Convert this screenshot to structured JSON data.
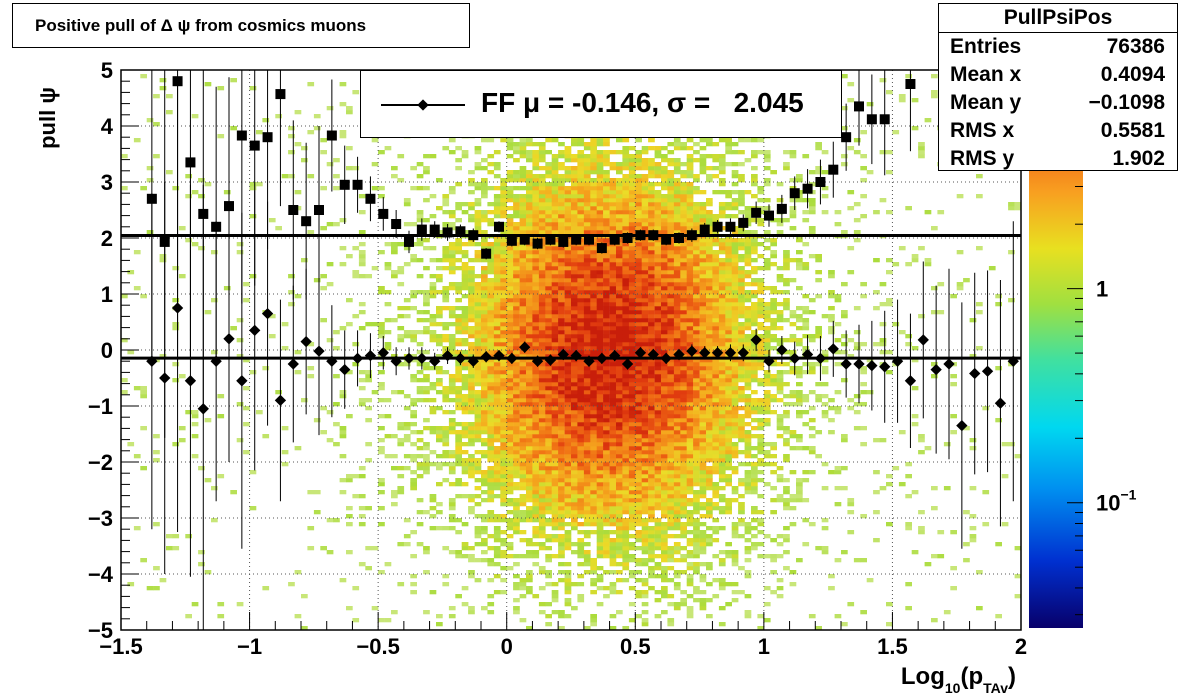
{
  "chart_data": {
    "type": "scatter",
    "title": "Positive pull of Δ ψ from cosmics muons",
    "xlabel": "Log10(pTAv)",
    "xlabel_parts": {
      "main": "Log",
      "sub1": "10",
      "paren_open": "(p",
      "sub2": "TAv",
      "paren_close": ")"
    },
    "ylabel": "pull ψ",
    "xlim": [
      -1.5,
      2.0
    ],
    "ylim": [
      -5,
      5
    ],
    "x_ticks": [
      -1.5,
      -1,
      -0.5,
      0,
      0.5,
      1,
      1.5,
      2
    ],
    "x_tick_labels": [
      "−1.5",
      "−1",
      "−0.5",
      "0",
      "0.5",
      "1",
      "1.5",
      "2"
    ],
    "y_ticks": [
      -5,
      -4,
      -3,
      -2,
      -1,
      0,
      1,
      2,
      3,
      4,
      5
    ],
    "y_tick_labels": [
      "−5",
      "−4",
      "−3",
      "−2",
      "−1",
      "0",
      "1",
      "2",
      "3",
      "4",
      "5"
    ],
    "grid": true,
    "colorbar": {
      "scale": "log",
      "labels": [
        {
          "text": "1",
          "value": 1
        },
        {
          "text": "10",
          "exp": "−1",
          "value": 0.1
        }
      ]
    },
    "stats_box": {
      "name": "PullPsiPos",
      "rows": [
        {
          "label": "Entries",
          "value": "76386"
        },
        {
          "label": "Mean x",
          "value": "0.4094"
        },
        {
          "label": "Mean y",
          "value": "−0.1098"
        },
        {
          "label": "RMS x",
          "value": "0.5581"
        },
        {
          "label": "RMS y",
          "value": "1.902"
        }
      ]
    },
    "legend": {
      "text": "FF μ = -0.146, σ =   2.045"
    },
    "fit_lines": {
      "mean": -0.146,
      "sigma": 2.045
    },
    "series": [
      {
        "marker": "diamond",
        "points": [
          {
            "x": -1.38,
            "y": -0.2,
            "e": 3.0
          },
          {
            "x": -1.33,
            "y": -0.5,
            "e": 3.5
          },
          {
            "x": -1.28,
            "y": 0.75,
            "e": 4.0
          },
          {
            "x": -1.23,
            "y": -0.55,
            "e": 3.5
          },
          {
            "x": -1.18,
            "y": -1.05,
            "e": 4.0
          },
          {
            "x": -1.13,
            "y": -0.2,
            "e": 2.5
          },
          {
            "x": -1.08,
            "y": 0.2,
            "e": 2.2
          },
          {
            "x": -1.03,
            "y": -0.55,
            "e": 3.0
          },
          {
            "x": -0.98,
            "y": 0.35,
            "e": 2.5
          },
          {
            "x": -0.93,
            "y": 0.65,
            "e": 2.0
          },
          {
            "x": -0.88,
            "y": -0.9,
            "e": 1.8
          },
          {
            "x": -0.83,
            "y": -0.25,
            "e": 1.4
          },
          {
            "x": -0.78,
            "y": 0.15,
            "e": 1.3
          },
          {
            "x": -0.73,
            "y": -0.02,
            "e": 1.5
          },
          {
            "x": -0.68,
            "y": -0.2,
            "e": 1.0
          },
          {
            "x": -0.63,
            "y": -0.35,
            "e": 0.7
          },
          {
            "x": -0.58,
            "y": -0.15,
            "e": 0.5
          },
          {
            "x": -0.53,
            "y": -0.1,
            "e": 0.4
          },
          {
            "x": -0.48,
            "y": -0.05,
            "e": 0.3
          },
          {
            "x": -0.43,
            "y": -0.2,
            "e": 0.25
          },
          {
            "x": -0.38,
            "y": -0.15,
            "e": 0.2
          },
          {
            "x": -0.33,
            "y": -0.15,
            "e": 0.2
          },
          {
            "x": -0.28,
            "y": -0.2,
            "e": 0.15
          },
          {
            "x": -0.23,
            "y": -0.1,
            "e": 0.15
          },
          {
            "x": -0.18,
            "y": -0.15,
            "e": 0.12
          },
          {
            "x": -0.13,
            "y": -0.2,
            "e": 0.12
          },
          {
            "x": -0.08,
            "y": -0.12,
            "e": 0.1
          },
          {
            "x": -0.03,
            "y": -0.1,
            "e": 0.1
          },
          {
            "x": 0.02,
            "y": -0.15,
            "e": 0.1
          },
          {
            "x": 0.07,
            "y": 0.05,
            "e": 0.1
          },
          {
            "x": 0.12,
            "y": -0.2,
            "e": 0.1
          },
          {
            "x": 0.17,
            "y": -0.18,
            "e": 0.1
          },
          {
            "x": 0.22,
            "y": -0.08,
            "e": 0.1
          },
          {
            "x": 0.27,
            "y": -0.1,
            "e": 0.1
          },
          {
            "x": 0.32,
            "y": -0.2,
            "e": 0.1
          },
          {
            "x": 0.37,
            "y": -0.15,
            "e": 0.1
          },
          {
            "x": 0.42,
            "y": -0.1,
            "e": 0.1
          },
          {
            "x": 0.47,
            "y": -0.25,
            "e": 0.1
          },
          {
            "x": 0.52,
            "y": -0.05,
            "e": 0.1
          },
          {
            "x": 0.57,
            "y": -0.08,
            "e": 0.1
          },
          {
            "x": 0.62,
            "y": -0.15,
            "e": 0.1
          },
          {
            "x": 0.67,
            "y": -0.08,
            "e": 0.1
          },
          {
            "x": 0.72,
            "y": -0.02,
            "e": 0.12
          },
          {
            "x": 0.77,
            "y": -0.05,
            "e": 0.12
          },
          {
            "x": 0.82,
            "y": -0.05,
            "e": 0.12
          },
          {
            "x": 0.87,
            "y": -0.05,
            "e": 0.15
          },
          {
            "x": 0.92,
            "y": -0.05,
            "e": 0.15
          },
          {
            "x": 0.97,
            "y": 0.18,
            "e": 0.2
          },
          {
            "x": 1.02,
            "y": -0.2,
            "e": 0.2
          },
          {
            "x": 1.07,
            "y": 0.0,
            "e": 0.25
          },
          {
            "x": 1.12,
            "y": -0.15,
            "e": 0.3
          },
          {
            "x": 1.17,
            "y": -0.08,
            "e": 0.35
          },
          {
            "x": 1.22,
            "y": -0.15,
            "e": 0.4
          },
          {
            "x": 1.27,
            "y": 0.02,
            "e": 0.5
          },
          {
            "x": 1.32,
            "y": -0.25,
            "e": 0.6
          },
          {
            "x": 1.37,
            "y": -0.25,
            "e": 0.7
          },
          {
            "x": 1.42,
            "y": -0.28,
            "e": 0.8
          },
          {
            "x": 1.47,
            "y": -0.3,
            "e": 1.0
          },
          {
            "x": 1.52,
            "y": -0.2,
            "e": 1.1
          },
          {
            "x": 1.57,
            "y": -0.55,
            "e": 1.2
          },
          {
            "x": 1.62,
            "y": 0.18,
            "e": 1.4
          },
          {
            "x": 1.67,
            "y": -0.35,
            "e": 1.5
          },
          {
            "x": 1.72,
            "y": -0.25,
            "e": 1.7
          },
          {
            "x": 1.77,
            "y": -1.35,
            "e": 2.2
          },
          {
            "x": 1.82,
            "y": -0.42,
            "e": 1.8
          },
          {
            "x": 1.87,
            "y": -0.38,
            "e": 1.8
          },
          {
            "x": 1.92,
            "y": -0.95,
            "e": 2.2
          },
          {
            "x": 1.97,
            "y": -0.2,
            "e": 2.5
          }
        ]
      },
      {
        "marker": "square",
        "points": [
          {
            "x": -1.38,
            "y": 2.7,
            "e": 3.0
          },
          {
            "x": -1.33,
            "y": 1.93,
            "e": 3.5
          },
          {
            "x": -1.28,
            "y": 4.8,
            "e": 5.0
          },
          {
            "x": -1.23,
            "y": 3.35,
            "e": 3.5
          },
          {
            "x": -1.18,
            "y": 2.43,
            "e": 3.5
          },
          {
            "x": -1.13,
            "y": 2.2,
            "e": 2.5
          },
          {
            "x": -1.08,
            "y": 2.57,
            "e": 2.3
          },
          {
            "x": -1.03,
            "y": 3.83,
            "e": 3.0
          },
          {
            "x": -0.98,
            "y": 3.65,
            "e": 2.5
          },
          {
            "x": -0.93,
            "y": 3.8,
            "e": 2.0
          },
          {
            "x": -0.88,
            "y": 4.57,
            "e": 2.0
          },
          {
            "x": -0.83,
            "y": 2.5,
            "e": 1.6
          },
          {
            "x": -0.78,
            "y": 2.3,
            "e": 1.4
          },
          {
            "x": -0.73,
            "y": 2.5,
            "e": 1.5
          },
          {
            "x": -0.68,
            "y": 3.83,
            "e": 1.0
          },
          {
            "x": -0.63,
            "y": 2.95,
            "e": 0.7
          },
          {
            "x": -0.58,
            "y": 2.95,
            "e": 0.5
          },
          {
            "x": -0.53,
            "y": 2.7,
            "e": 0.4
          },
          {
            "x": -0.48,
            "y": 2.43,
            "e": 0.3
          },
          {
            "x": -0.43,
            "y": 2.25,
            "e": 0.25
          },
          {
            "x": -0.38,
            "y": 1.93,
            "e": 0.2
          },
          {
            "x": -0.33,
            "y": 2.15,
            "e": 0.2
          },
          {
            "x": -0.28,
            "y": 2.15,
            "e": 0.15
          },
          {
            "x": -0.23,
            "y": 2.1,
            "e": 0.15
          },
          {
            "x": -0.18,
            "y": 2.12,
            "e": 0.12
          },
          {
            "x": -0.13,
            "y": 2.05,
            "e": 0.12
          },
          {
            "x": -0.08,
            "y": 1.72,
            "e": 0.1
          },
          {
            "x": -0.03,
            "y": 2.2,
            "e": 0.1
          },
          {
            "x": 0.02,
            "y": 1.95,
            "e": 0.1
          },
          {
            "x": 0.07,
            "y": 1.97,
            "e": 0.1
          },
          {
            "x": 0.12,
            "y": 1.9,
            "e": 0.1
          },
          {
            "x": 0.17,
            "y": 1.97,
            "e": 0.1
          },
          {
            "x": 0.22,
            "y": 1.93,
            "e": 0.1
          },
          {
            "x": 0.27,
            "y": 1.97,
            "e": 0.1
          },
          {
            "x": 0.32,
            "y": 1.97,
            "e": 0.1
          },
          {
            "x": 0.37,
            "y": 1.82,
            "e": 0.1
          },
          {
            "x": 0.42,
            "y": 1.97,
            "e": 0.1
          },
          {
            "x": 0.47,
            "y": 2.0,
            "e": 0.1
          },
          {
            "x": 0.52,
            "y": 2.05,
            "e": 0.1
          },
          {
            "x": 0.57,
            "y": 2.05,
            "e": 0.1
          },
          {
            "x": 0.62,
            "y": 1.97,
            "e": 0.1
          },
          {
            "x": 0.67,
            "y": 2.0,
            "e": 0.1
          },
          {
            "x": 0.72,
            "y": 2.05,
            "e": 0.12
          },
          {
            "x": 0.77,
            "y": 2.15,
            "e": 0.12
          },
          {
            "x": 0.82,
            "y": 2.2,
            "e": 0.12
          },
          {
            "x": 0.87,
            "y": 2.2,
            "e": 0.15
          },
          {
            "x": 0.92,
            "y": 2.27,
            "e": 0.15
          },
          {
            "x": 0.97,
            "y": 2.45,
            "e": 0.2
          },
          {
            "x": 1.02,
            "y": 2.4,
            "e": 0.2
          },
          {
            "x": 1.07,
            "y": 2.52,
            "e": 0.25
          },
          {
            "x": 1.12,
            "y": 2.8,
            "e": 0.3
          },
          {
            "x": 1.17,
            "y": 2.88,
            "e": 0.35
          },
          {
            "x": 1.22,
            "y": 3.0,
            "e": 0.4
          },
          {
            "x": 1.27,
            "y": 3.22,
            "e": 0.5
          },
          {
            "x": 1.32,
            "y": 3.8,
            "e": 0.6
          },
          {
            "x": 1.37,
            "y": 4.35,
            "e": 0.7
          },
          {
            "x": 1.42,
            "y": 4.12,
            "e": 0.8
          },
          {
            "x": 1.47,
            "y": 4.12,
            "e": 1.0
          },
          {
            "x": 1.57,
            "y": 4.75,
            "e": 1.2
          }
        ]
      }
    ]
  }
}
